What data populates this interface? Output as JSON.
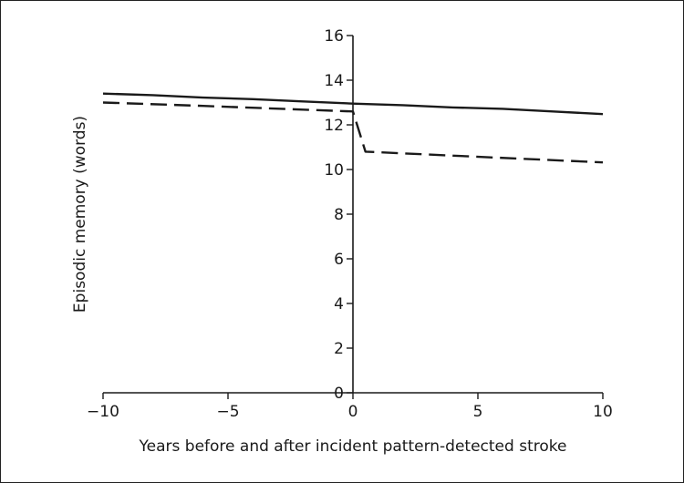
{
  "chart_data": {
    "type": "line",
    "title": "",
    "xlabel": "Years before and after incident pattern-detected stroke",
    "ylabel": "Episodic memory (words)",
    "xlim": [
      -10,
      10
    ],
    "ylim": [
      0,
      16
    ],
    "xticks": [
      -10,
      -5,
      0,
      5,
      10
    ],
    "xtick_labels": [
      "−10",
      "−5",
      "0",
      "5",
      "10"
    ],
    "yticks": [
      0,
      2,
      4,
      6,
      8,
      10,
      12,
      14,
      16
    ],
    "ytick_labels": [
      "0",
      "2",
      "4",
      "6",
      "8",
      "10",
      "12",
      "14",
      "16"
    ],
    "grid": false,
    "legend": "none",
    "series": [
      {
        "style": "solid",
        "color": "#1a1a1a",
        "x": [
          -10,
          -8,
          -6,
          -4,
          -2,
          0,
          2,
          4,
          6,
          8,
          10
        ],
        "y": [
          13.4,
          13.33,
          13.22,
          13.15,
          13.05,
          12.95,
          12.88,
          12.78,
          12.72,
          12.6,
          12.48
        ]
      },
      {
        "style": "dashed",
        "color": "#1a1a1a",
        "x": [
          -10,
          -6,
          -2,
          0,
          0.5,
          4,
          10
        ],
        "y": [
          13.0,
          12.85,
          12.68,
          12.6,
          10.8,
          10.62,
          10.32
        ]
      }
    ]
  }
}
